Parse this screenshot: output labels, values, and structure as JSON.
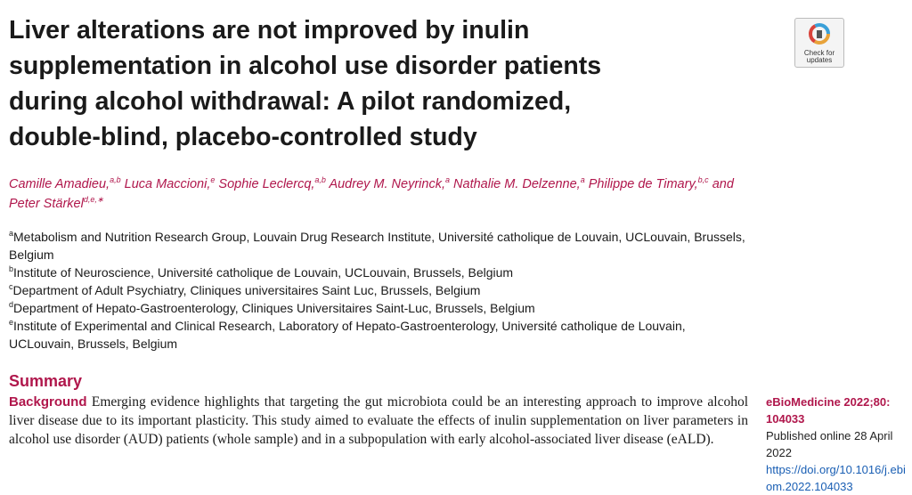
{
  "header": {
    "title_lines": [
      "Liver alterations are not improved by inulin",
      "supplementation in alcohol use disorder patients",
      "during alcohol withdrawal: A pilot randomized,",
      "double-blind, placebo-controlled study"
    ],
    "badge": "Check for updates"
  },
  "authors": [
    {
      "name": "Camille Amadieu,",
      "sup": "a,b"
    },
    {
      "name": "Luca Maccioni,",
      "sup": "e"
    },
    {
      "name": "Sophie Leclercq,",
      "sup": "a,b"
    },
    {
      "name": "Audrey M. Neyrinck,",
      "sup": "a"
    },
    {
      "name": "Nathalie M. Delzenne,",
      "sup": "a"
    },
    {
      "name": "Philippe de Timary,",
      "sup": "b,c"
    },
    {
      "name": "and",
      "sup": ""
    },
    {
      "name": "Peter Stärkel",
      "sup": "d,e,∗"
    }
  ],
  "affiliations": [
    {
      "sup": "a",
      "text": "Metabolism and Nutrition Research Group, Louvain Drug Research Institute, Université catholique de Louvain, UCLouvain, Brussels, Belgium"
    },
    {
      "sup": "b",
      "text": "Institute of Neuroscience, Université catholique de Louvain, UCLouvain, Brussels, Belgium"
    },
    {
      "sup": "c",
      "text": "Department of Adult Psychiatry, Cliniques universitaires Saint Luc, Brussels, Belgium"
    },
    {
      "sup": "d",
      "text": "Department of Hepato-Gastroenterology, Cliniques Universitaires Saint-Luc, Brussels, Belgium"
    },
    {
      "sup": "e",
      "text": "Institute of Experimental and Clinical Research, Laboratory of Hepato-Gastroenterology, Université catholique de Louvain, UCLouvain, Brussels, Belgium"
    }
  ],
  "summary": {
    "heading": "Summary",
    "label": "Background",
    "text": "Emerging evidence highlights that targeting the gut microbiota could be an interesting approach to improve alcohol liver disease due to its important plasticity. This study aimed to evaluate the effects of inulin supplementation on liver parameters in alcohol use disorder (AUD) patients (whole sample) and in a subpopulation with early alcohol-associated liver disease (eALD)."
  },
  "sidebar": {
    "journal": "eBioMedicine 2022;80: 104033",
    "published": "Published online 28 April 2022",
    "doi": "https://doi.org/10.1016/j.ebiom.2022.104033"
  }
}
